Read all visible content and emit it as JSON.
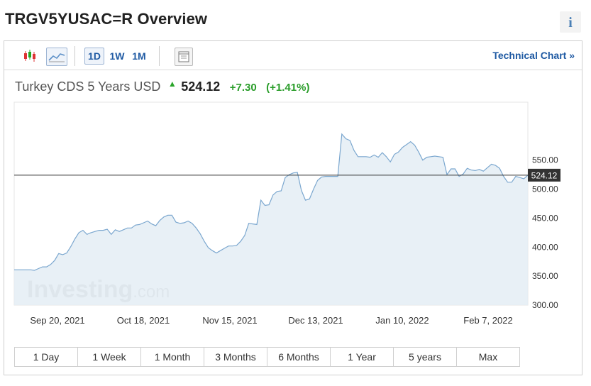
{
  "page": {
    "title": "TRGV5YUSAC=R Overview",
    "info_label": "i"
  },
  "toolbar": {
    "icons": [
      "candlestick-chart-icon",
      "area-chart-icon",
      "chart-window-icon"
    ],
    "intervals": [
      "1D",
      "1W",
      "1M"
    ],
    "technical_chart_label": "Technical Chart",
    "technical_chart_arrow": "»"
  },
  "quote": {
    "name": "Turkey CDS 5 Years USD",
    "price": "524.12",
    "change": "+7.30",
    "change_pct": "(+1.41%)",
    "direction": "up"
  },
  "ranges": [
    "1 Day",
    "1 Week",
    "1 Month",
    "3 Months",
    "6 Months",
    "1 Year",
    "5 years",
    "Max"
  ],
  "watermark": {
    "brand": "Investing",
    "suffix": ".com"
  },
  "chart_data": {
    "type": "area",
    "x_tick_labels": [
      "Sep 20, 2021",
      "Oct 18, 2021",
      "Nov 15, 2021",
      "Dec 13, 2021",
      "Jan 10, 2022",
      "Feb 7, 2022"
    ],
    "y_tick_labels": [
      "550.00",
      "500.00",
      "450.00",
      "400.00",
      "350.00",
      "300.00"
    ],
    "ylim": [
      300,
      650
    ],
    "last_value_label": "524.12",
    "last_value": 524.12,
    "colors": {
      "line": "#7ba7cf",
      "fill": "#e4edf4",
      "price_line": "#333333",
      "price_tag": "#333333"
    },
    "grid": false,
    "values": [
      361,
      361,
      361,
      361,
      361,
      360,
      363,
      366,
      366,
      370,
      377,
      389,
      387,
      390,
      401,
      414,
      425,
      429,
      422,
      425,
      427,
      429,
      429,
      431,
      422,
      430,
      427,
      430,
      433,
      433,
      438,
      439,
      442,
      445,
      440,
      437,
      446,
      452,
      455,
      455,
      443,
      441,
      442,
      445,
      441,
      433,
      423,
      410,
      399,
      394,
      390,
      394,
      398,
      402,
      402,
      403,
      410,
      420,
      441,
      440,
      439,
      481,
      472,
      473,
      490,
      496,
      497,
      520,
      525,
      528,
      529,
      498,
      481,
      483,
      500,
      515,
      521,
      522,
      522,
      522,
      522,
      595,
      587,
      584,
      567,
      556,
      556,
      556,
      555,
      559,
      555,
      563,
      556,
      547,
      560,
      564,
      572,
      577,
      582,
      576,
      564,
      550,
      555,
      556,
      557,
      556,
      555,
      525,
      535,
      535,
      522,
      526,
      536,
      533,
      532,
      534,
      531,
      537,
      543,
      541,
      536,
      522,
      512,
      512,
      522,
      520,
      518,
      524
    ]
  }
}
